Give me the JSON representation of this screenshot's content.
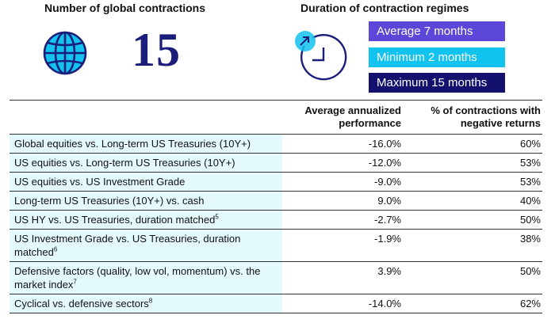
{
  "left_panel": {
    "heading": "Number of global contractions",
    "icon": "globe-icon",
    "count": "15"
  },
  "right_panel": {
    "heading": "Duration of contraction regimes",
    "icon": "clock-icon",
    "badges": {
      "average": "Average 7 months",
      "minimum": "Minimum 2 months",
      "maximum": "Maximum 15 months"
    }
  },
  "colors": {
    "navy": "#1a1d7a",
    "purple": "#5b47d8",
    "cyan": "#12c2ef",
    "dark_navy": "#14116e",
    "label_bg": "#e3f9fc"
  },
  "table": {
    "headers": {
      "perf_line1": "Average annualized",
      "perf_line2": "performance",
      "neg_line1": "% of contractions with",
      "neg_line2": "negative returns"
    },
    "rows": [
      {
        "label": "Global equities vs. Long-term US Treasuries (10Y+)",
        "sup": "",
        "perf": "-16.0%",
        "neg": "60%"
      },
      {
        "label": "US equities vs. Long-term US Treasuries (10Y+)",
        "sup": "",
        "perf": "-12.0%",
        "neg": "53%"
      },
      {
        "label": "US equities vs. US Investment Grade",
        "sup": "",
        "perf": "-9.0%",
        "neg": "53%"
      },
      {
        "label": "Long-term US Treasuries (10Y+) vs. cash",
        "sup": "",
        "perf": "9.0%",
        "neg": "40%"
      },
      {
        "label": "US HY vs. US Treasuries, duration matched",
        "sup": "5",
        "perf": "-2.7%",
        "neg": "50%"
      },
      {
        "label": "US Investment Grade vs. US Treasuries, duration matched",
        "sup": "6",
        "perf": "-1.9%",
        "neg": "38%"
      },
      {
        "label": "Defensive factors (quality, low vol, momentum) vs. the market index",
        "sup": "7",
        "perf": "3.9%",
        "neg": "50%"
      },
      {
        "label": "Cyclical vs. defensive sectors",
        "sup": "8",
        "perf": "-14.0%",
        "neg": "62%"
      }
    ]
  }
}
